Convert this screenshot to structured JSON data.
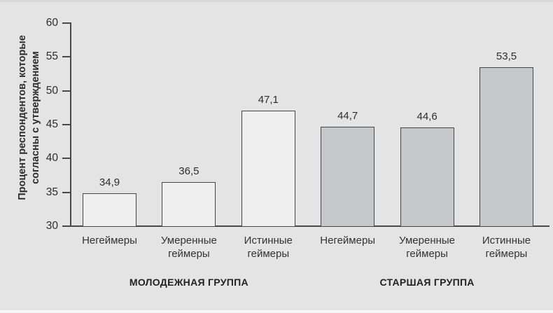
{
  "chart_data": {
    "type": "bar",
    "ylabel": "Процент респондентов, которые согласны с утверждением",
    "ylabel_lines": [
      "Процент респондентов, которые",
      "согласны с утверждением"
    ],
    "ylim": [
      30,
      60
    ],
    "yticks": [
      30,
      35,
      40,
      45,
      50,
      55,
      60
    ],
    "grid": false,
    "legend": "none",
    "groups": [
      {
        "label": "МОЛОДЕЖНАЯ ГРУППА",
        "fill": "#efefef",
        "bars": [
          {
            "category": "Негеймеры",
            "value": 34.9,
            "value_label": "34,9"
          },
          {
            "category": "Умеренные геймеры",
            "value": 36.5,
            "value_label": "36,5"
          },
          {
            "category": "Истинные геймеры",
            "value": 47.1,
            "value_label": "47,1"
          }
        ]
      },
      {
        "label": "СТАРШАЯ ГРУППА",
        "fill": "#c6c7c9",
        "bars": [
          {
            "category": "Негеймеры",
            "value": 44.7,
            "value_label": "44,7"
          },
          {
            "category": "Умеренные геймеры",
            "value": 44.6,
            "value_label": "44,6"
          },
          {
            "category": "Истинные геймеры",
            "value": 53.5,
            "value_label": "53,5"
          }
        ]
      }
    ],
    "colors": {
      "background": "#e4e4e4",
      "bar_fill_youth_group": "#efefef",
      "bar_fill_senior_group": "#c6c7c9",
      "bar_outline": "#474747",
      "axis": "#4a4a4a",
      "text": "#2d2d2d"
    }
  }
}
